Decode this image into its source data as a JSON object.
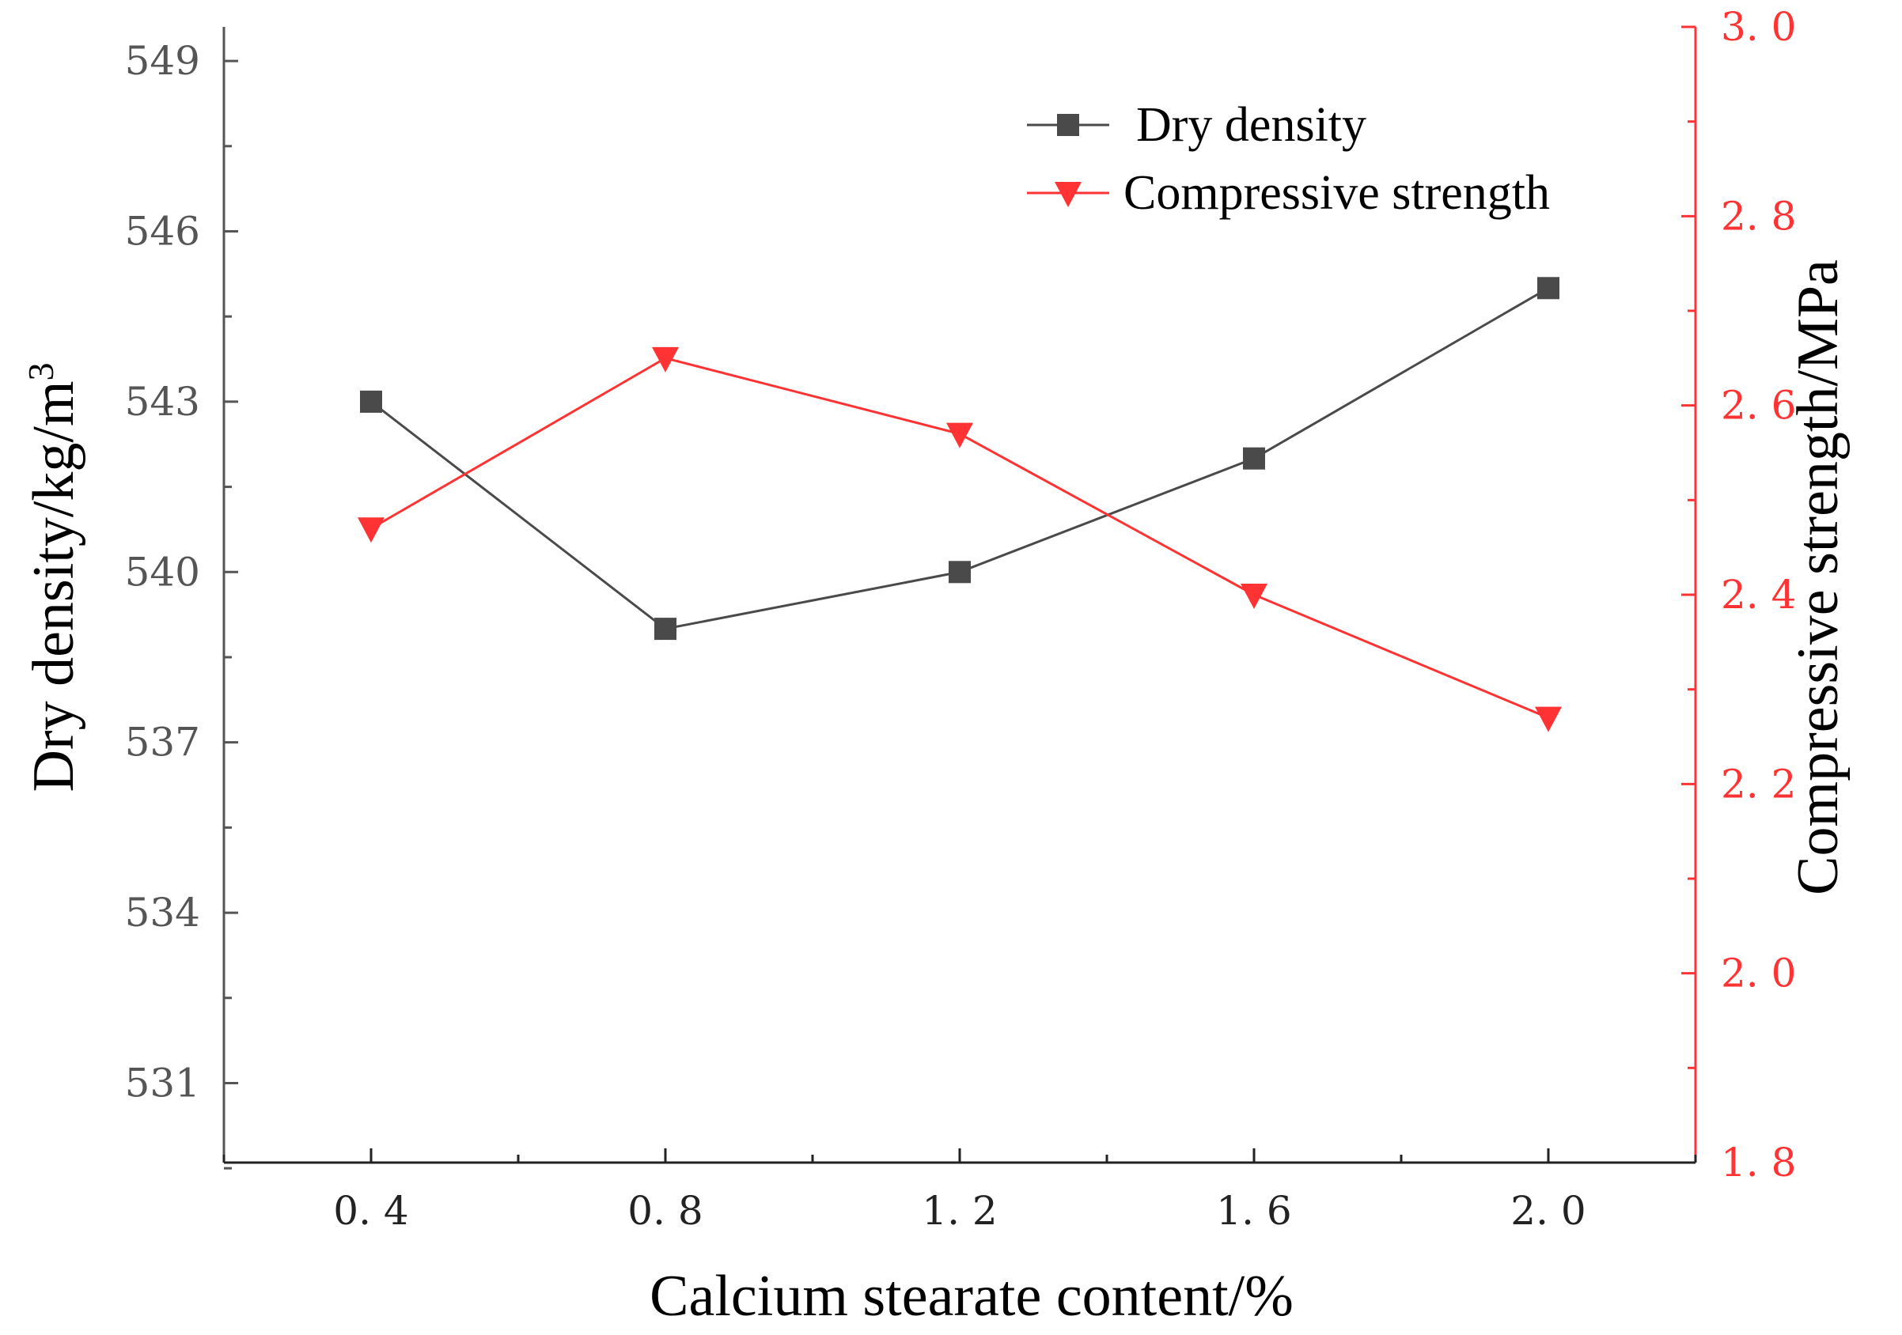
{
  "chart_data": {
    "type": "line",
    "x": [
      0.4,
      0.8,
      1.2,
      1.6,
      2.0
    ],
    "x_tick_labels": [
      "0. 4",
      "0. 8",
      "1. 2",
      "1. 6",
      "2. 0"
    ],
    "xlim": [
      0.2,
      2.2
    ],
    "xlabel": "Calcium stearate content/%",
    "ylabel_left_text": "Dry density/kg/m",
    "ylabel_left_superscript": "3",
    "ylabel_right": "Compressive strength/MPa",
    "ylim_left": [
      529.6,
      549.6
    ],
    "ylim_right": [
      1.8,
      3.0
    ],
    "left_ticks": [
      531,
      534,
      537,
      540,
      543,
      546,
      549
    ],
    "left_tick_labels": [
      "531",
      "534",
      "537",
      "540",
      "543",
      "546",
      "549"
    ],
    "right_ticks": [
      1.8,
      2.0,
      2.2,
      2.4,
      2.6,
      2.8,
      3.0
    ],
    "right_tick_labels": [
      "1. 8",
      "2. 0",
      "2. 2",
      "2. 4",
      "2. 6",
      "2. 8",
      "3. 0"
    ],
    "grid": false,
    "legend_position": "top-right",
    "series": [
      {
        "name": "Dry density",
        "axis": "left",
        "marker": "square",
        "color": "#4a4a4a",
        "values": [
          543,
          539,
          540,
          542,
          545
        ]
      },
      {
        "name": "Compressive strength",
        "axis": "right",
        "marker": "triangle-down",
        "color": "#ff3333",
        "values": [
          2.47,
          2.65,
          2.57,
          2.4,
          2.27
        ]
      }
    ]
  }
}
